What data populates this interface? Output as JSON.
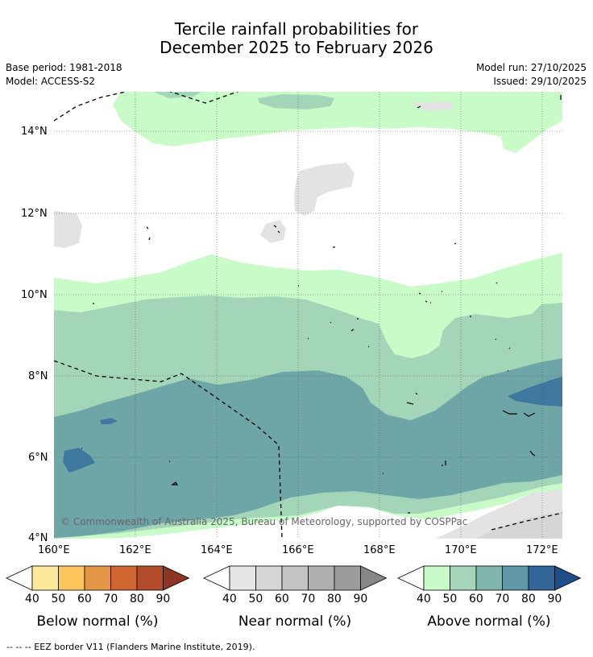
{
  "title": {
    "line1": "Tercile rainfall probabilities for",
    "line2": "December 2025 to February 2026"
  },
  "meta": {
    "base_period": "Base period: 1981-2018",
    "model": "Model: ACCESS-S2",
    "model_run": "Model run: 27/10/2025",
    "issued": "Issued: 29/10/2025"
  },
  "map": {
    "lon_range": [
      160,
      172.5
    ],
    "lat_range": [
      4,
      15
    ],
    "lat_ticks": [
      "14°N",
      "12°N",
      "10°N",
      "8°N",
      "6°N",
      "4°N"
    ],
    "lon_ticks": [
      "160°E",
      "162°E",
      "164°E",
      "166°E",
      "168°E",
      "170°E",
      "172°E"
    ],
    "copyright": "© Commonwealth of Australia 2025, Bureau of Meteorology, supported by COSPPac"
  },
  "colorbars": [
    {
      "title": "Below normal (%)",
      "labels": [
        "40",
        "50",
        "60",
        "70",
        "80",
        "90"
      ],
      "colors": [
        "#ffffff",
        "#fde99c",
        "#fcc55e",
        "#e39646",
        "#cf6632",
        "#b24c2a",
        "#8e3423"
      ]
    },
    {
      "title": "Near normal (%)",
      "labels": [
        "40",
        "50",
        "60",
        "70",
        "80",
        "90"
      ],
      "colors": [
        "#ffffff",
        "#e6e6e6",
        "#d6d6d6",
        "#c4c4c4",
        "#b0b0b0",
        "#9c9c9c",
        "#878787"
      ]
    },
    {
      "title": "Above normal (%)",
      "labels": [
        "40",
        "50",
        "60",
        "70",
        "80",
        "90"
      ],
      "colors": [
        "#ffffff",
        "#c8fbc8",
        "#a3d6b9",
        "#80b5ad",
        "#5f97a6",
        "#34659a",
        "#1d4e87"
      ]
    }
  ],
  "footer": "--  --  -- EEZ border V11 (Flanders Marine Institute, 2019).",
  "palette": {
    "above40": "#c8fbc8",
    "above50": "#a3d6b9",
    "above60": "#6ea6a8",
    "above70": "#3f789e",
    "near40": "#e3e3e3",
    "near50": "#d6d6d6"
  }
}
